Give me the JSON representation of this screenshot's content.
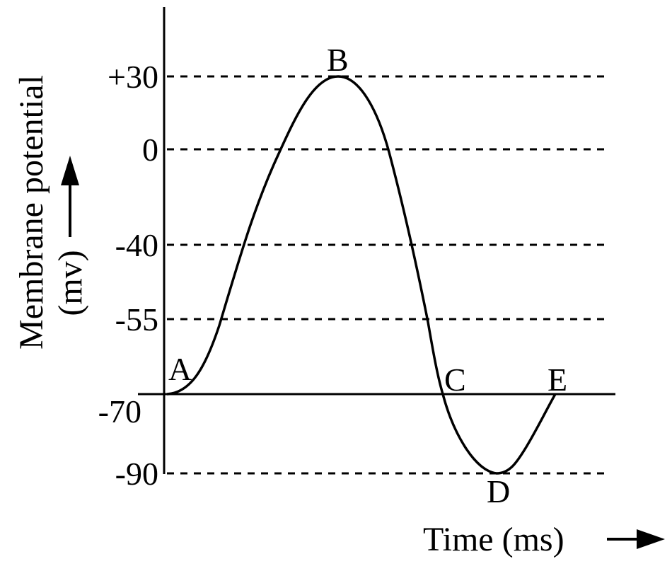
{
  "chart_data": {
    "type": "line",
    "title": "",
    "xlabel": "Time (ms)",
    "ylabel_line1": "Membrane potential",
    "ylabel_line2": "(mv)",
    "y_ticks": [
      "+30",
      "0",
      "-40",
      "-55",
      "-70",
      "-90"
    ],
    "y_tick_values": [
      30,
      0,
      -40,
      -55,
      -70,
      -90
    ],
    "baseline_value": -70,
    "grid": "dashed horizontal lines at tick values",
    "points": [
      {
        "label": "A",
        "y": -70
      },
      {
        "label": "B",
        "y": 30
      },
      {
        "label": "C",
        "y": -70
      },
      {
        "label": "D",
        "y": -90
      },
      {
        "label": "E",
        "y": -70
      }
    ],
    "line_color": "#000000"
  }
}
